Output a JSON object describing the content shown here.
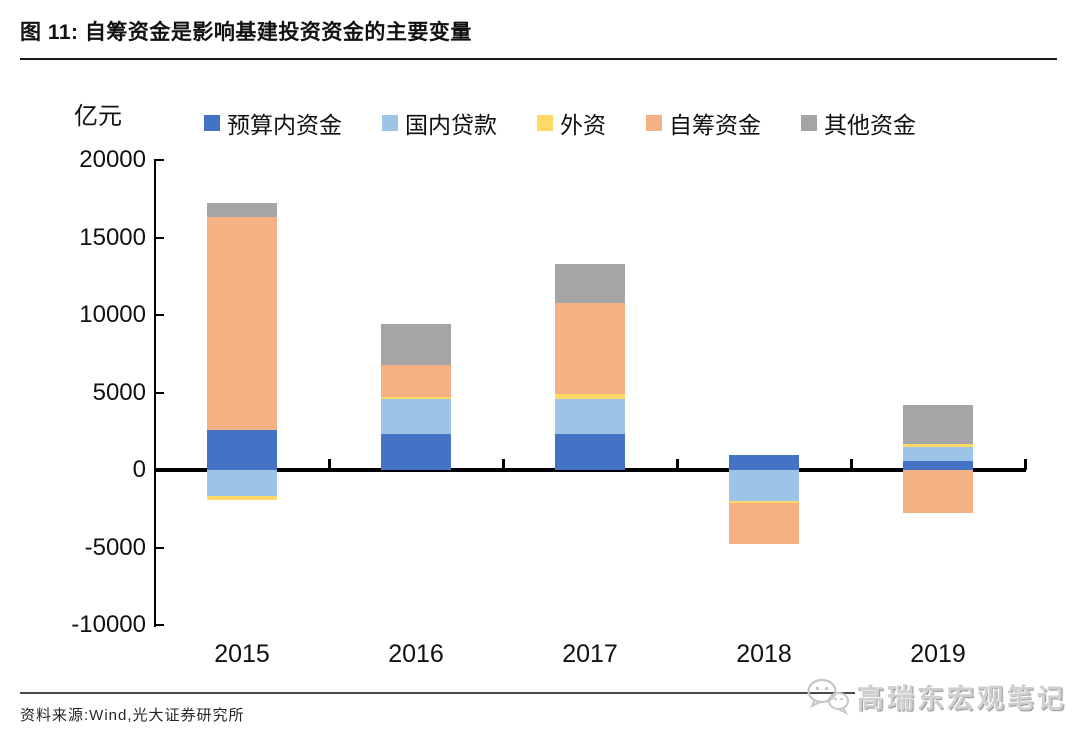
{
  "header": {
    "title": "图 11: 自筹资金是影响基建投资资金的主要变量"
  },
  "chart_data": {
    "type": "bar",
    "stacked": true,
    "title": "自筹资金是影响基建投资资金的主要变量",
    "unit_label": "亿元",
    "categories": [
      "2015",
      "2016",
      "2017",
      "2018",
      "2019"
    ],
    "series": [
      {
        "name": "预算内资金",
        "color": "#4472C4",
        "values": [
          2600,
          2350,
          2350,
          950,
          600
        ]
      },
      {
        "name": "国内贷款",
        "color": "#9DC3E6",
        "values": [
          -1700,
          2250,
          2250,
          -2000,
          900
        ]
      },
      {
        "name": "外资",
        "color": "#FFD966",
        "values": [
          -250,
          100,
          300,
          -100,
          200
        ]
      },
      {
        "name": "自筹资金",
        "color": "#F4B183",
        "values": [
          13700,
          2050,
          5850,
          -2700,
          -2750
        ]
      },
      {
        "name": "其他资金",
        "color": "#A5A5A5",
        "values": [
          900,
          2700,
          2550,
          0,
          2500
        ]
      }
    ],
    "ylim": [
      -10000,
      20000
    ],
    "ytick_interval": 5000,
    "yticks": [
      "20000",
      "15000",
      "10000",
      "5000",
      "0",
      "-5000",
      "-10000"
    ],
    "legend_position": "top",
    "grid": false,
    "axis_color": "#000000"
  },
  "footer": {
    "source": "资料来源:Wind,光大证券研究所",
    "watermark": "高瑞东宏观笔记"
  }
}
